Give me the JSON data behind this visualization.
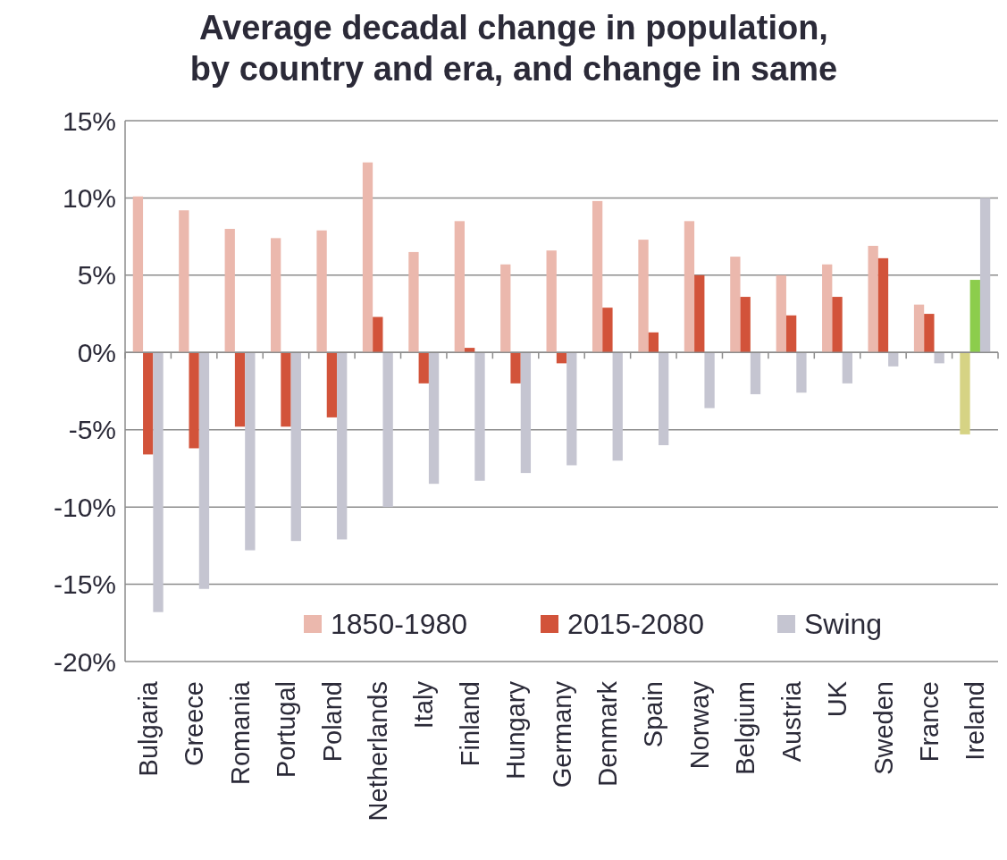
{
  "chart_data": {
    "type": "bar",
    "title": "Average decadal change in population,\nby country and era, and change in same",
    "categories": [
      "Bulgaria",
      "Greece",
      "Romania",
      "Portugal",
      "Poland",
      "Netherlands",
      "Italy",
      "Finland",
      "Hungary",
      "Germany",
      "Denmark",
      "Spain",
      "Norway",
      "Belgium",
      "Austria",
      "UK",
      "Sweden",
      "France",
      "Ireland"
    ],
    "series": [
      {
        "name": "1850-1980",
        "color": "#ebb8ad",
        "colors": [
          "#ebb8ad",
          "#ebb8ad",
          "#ebb8ad",
          "#ebb8ad",
          "#ebb8ad",
          "#ebb8ad",
          "#ebb8ad",
          "#ebb8ad",
          "#ebb8ad",
          "#ebb8ad",
          "#ebb8ad",
          "#ebb8ad",
          "#ebb8ad",
          "#ebb8ad",
          "#ebb8ad",
          "#ebb8ad",
          "#ebb8ad",
          "#ebb8ad",
          "#d6d384"
        ],
        "values": [
          10.1,
          9.2,
          8.0,
          7.4,
          7.9,
          12.3,
          6.5,
          8.5,
          5.7,
          6.6,
          9.8,
          7.3,
          8.5,
          6.2,
          5.0,
          5.7,
          6.9,
          3.1,
          -5.3
        ]
      },
      {
        "name": "2015-2080",
        "color": "#d2533a",
        "colors": [
          "#d2533a",
          "#d2533a",
          "#d2533a",
          "#d2533a",
          "#d2533a",
          "#d2533a",
          "#d2533a",
          "#d2533a",
          "#d2533a",
          "#d2533a",
          "#d2533a",
          "#d2533a",
          "#d2533a",
          "#d2533a",
          "#d2533a",
          "#d2533a",
          "#d2533a",
          "#d2533a",
          "#8ccd4c"
        ],
        "values": [
          -6.6,
          -6.2,
          -4.8,
          -4.8,
          -4.2,
          2.3,
          -2.0,
          0.3,
          -2.0,
          -0.7,
          2.9,
          1.3,
          5.0,
          3.6,
          2.4,
          3.6,
          6.1,
          2.5,
          4.7
        ]
      },
      {
        "name": "Swing",
        "color": "#c5c5d1",
        "values": [
          -16.8,
          -15.3,
          -12.8,
          -12.2,
          -12.1,
          -10.0,
          -8.5,
          -8.3,
          -7.8,
          -7.3,
          -7.0,
          -6.0,
          -3.6,
          -2.7,
          -2.6,
          -2.0,
          -0.9,
          -0.7,
          10.0
        ]
      }
    ],
    "ylim": [
      -20,
      15
    ],
    "yticks": [
      {
        "value": -20,
        "label": "-20%"
      },
      {
        "value": -15,
        "label": "-15%"
      },
      {
        "value": -10,
        "label": "-10%"
      },
      {
        "value": -5,
        "label": "-5%"
      },
      {
        "value": 0,
        "label": "0%"
      },
      {
        "value": 5,
        "label": "5%"
      },
      {
        "value": 10,
        "label": "10%"
      },
      {
        "value": 15,
        "label": "15%"
      }
    ],
    "grid": "y",
    "legend": "bottom right"
  }
}
